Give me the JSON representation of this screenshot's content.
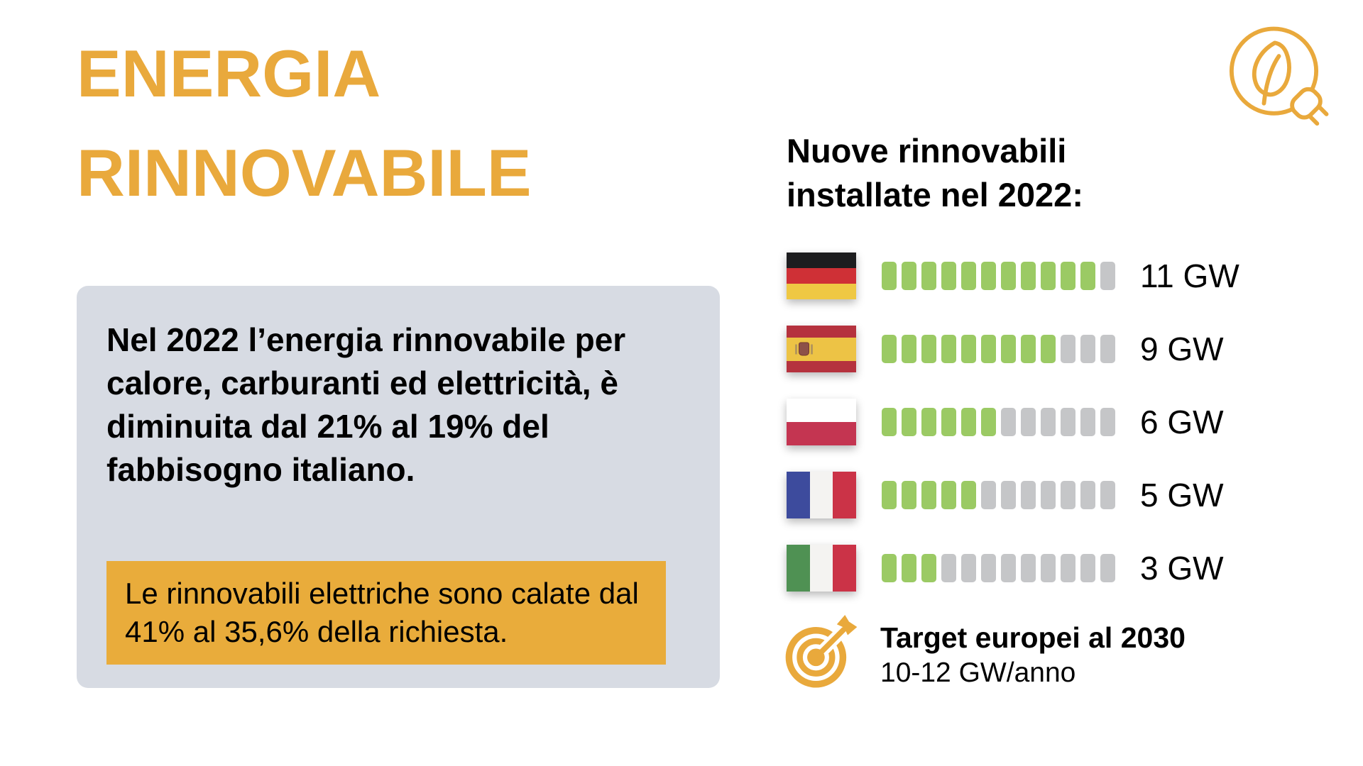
{
  "colors": {
    "accent": "#E9A93C",
    "card_bg": "#D7DBE3",
    "highlight_bg": "#E9AC3B",
    "segment_filled": "#9BCA64",
    "segment_empty": "#C5C6C8",
    "text": "#000000"
  },
  "title": {
    "line1": "ENERGIA",
    "line2": "RINNOVABILE"
  },
  "icons": {
    "top_right": "leaf-plug-icon",
    "target": "target-bullseye-arrow-icon"
  },
  "info_card": {
    "paragraph": "Nel 2022 l’energia rinnovabile per calore, carburanti ed elettricità, è diminuita dal 21% al 19% del fabbisogno italiano.",
    "highlight": "Le rinnovabili elettriche sono calate dal 41% al 35,6% della richiesta."
  },
  "chart_data": {
    "type": "bar",
    "title": "Nuove rinnovabili installate nel 2022:",
    "unit": "GW",
    "max_segments": 12,
    "categories": [
      "Germania",
      "Spagna",
      "Polonia",
      "Francia",
      "Italia"
    ],
    "values": [
      11,
      9,
      6,
      5,
      3
    ],
    "labels": [
      "11 GW",
      "9 GW",
      "6 GW",
      "5 GW",
      "3 GW"
    ],
    "colors": {
      "filled": "#9BCA64",
      "empty": "#C5C6C8"
    },
    "flags": [
      {
        "id": "germany",
        "orientation": "horizontal",
        "stripes": [
          "#1d1d1f",
          "#cf3036",
          "#efc843"
        ],
        "weights": [
          1,
          1,
          1
        ],
        "emblem": false
      },
      {
        "id": "spain",
        "orientation": "horizontal",
        "stripes": [
          "#b5323e",
          "#edc345",
          "#b5323e"
        ],
        "weights": [
          1,
          2,
          1
        ],
        "emblem": true
      },
      {
        "id": "poland",
        "orientation": "horizontal",
        "stripes": [
          "#ffffff",
          "#c43551"
        ],
        "weights": [
          1,
          1
        ],
        "emblem": false
      },
      {
        "id": "france",
        "orientation": "vertical",
        "stripes": [
          "#3d4b9d",
          "#f4f3f1",
          "#cb3347"
        ],
        "weights": [
          1,
          1,
          1
        ],
        "emblem": false
      },
      {
        "id": "italy",
        "orientation": "vertical",
        "stripes": [
          "#4f9153",
          "#f4f3f1",
          "#cb3347"
        ],
        "weights": [
          1,
          1,
          1
        ],
        "emblem": false
      }
    ]
  },
  "target": {
    "title": "Target europei al 2030",
    "subtitle": "10-12 GW/anno"
  }
}
